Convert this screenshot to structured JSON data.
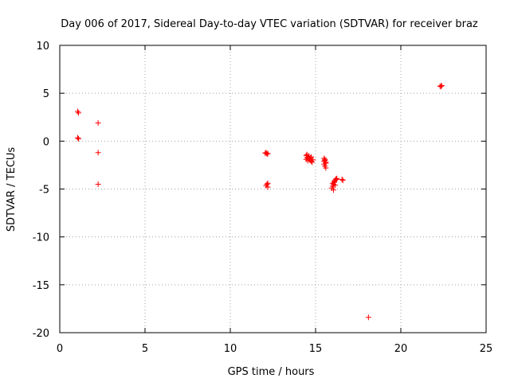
{
  "chart_data": {
    "type": "scatter",
    "title": "Day 006 of 2017, Sidereal Day-to-day VTEC variation (SDTVAR) for receiver braz",
    "xlabel": "GPS time / hours",
    "ylabel": "SDTVAR / TECUs",
    "xlim": [
      0,
      25
    ],
    "ylim": [
      -20,
      10
    ],
    "xticks": [
      0,
      5,
      10,
      15,
      20,
      25
    ],
    "yticks": [
      -20,
      -15,
      -10,
      -5,
      0,
      5,
      10
    ],
    "xtick_labels": [
      "0",
      "5",
      "10",
      "15",
      "20",
      "25"
    ],
    "ytick_labels": [
      "-20",
      "-15",
      "-10",
      "-5",
      "0",
      "5",
      "10"
    ],
    "grid": true,
    "marker": "+",
    "color": "#ff0000",
    "series": [
      {
        "name": "braz",
        "x": [
          1.05,
          1.1,
          1.05,
          1.1,
          2.25,
          2.25,
          2.25,
          12.1,
          12.2,
          12.15,
          12.05,
          12.2,
          12.15,
          12.1,
          12.2,
          14.45,
          14.5,
          14.55,
          14.6,
          14.65,
          14.7,
          14.75,
          14.8,
          14.85,
          14.5,
          14.6,
          14.7,
          14.55,
          14.65,
          14.75,
          14.45,
          15.5,
          15.55,
          15.6,
          15.5,
          15.55,
          15.6,
          15.55,
          15.6,
          15.5,
          15.95,
          16.0,
          16.05,
          16.1,
          16.15,
          16.2,
          16.25,
          16.05,
          16.15,
          16.0,
          16.1,
          16.2,
          16.55,
          16.6,
          18.1,
          22.3,
          22.4,
          22.35
        ],
        "y": [
          3.1,
          2.95,
          0.35,
          0.25,
          1.9,
          -1.2,
          -4.5,
          -1.2,
          -1.3,
          -1.35,
          -1.25,
          -4.4,
          -4.5,
          -4.65,
          -4.8,
          -1.5,
          -1.7,
          -1.8,
          -1.6,
          -1.9,
          -2.0,
          -2.1,
          -2.2,
          -1.95,
          -1.4,
          -1.55,
          -1.75,
          -2.05,
          -1.85,
          -1.65,
          -1.9,
          -1.8,
          -2.0,
          -2.2,
          -2.4,
          -2.6,
          -2.8,
          -1.9,
          -2.3,
          -2.1,
          -4.9,
          -4.7,
          -4.5,
          -4.3,
          -4.1,
          -3.95,
          -3.9,
          -5.1,
          -4.6,
          -4.4,
          -4.2,
          -4.0,
          -4.0,
          -4.1,
          -18.4,
          5.75,
          5.8,
          5.7
        ]
      }
    ]
  }
}
